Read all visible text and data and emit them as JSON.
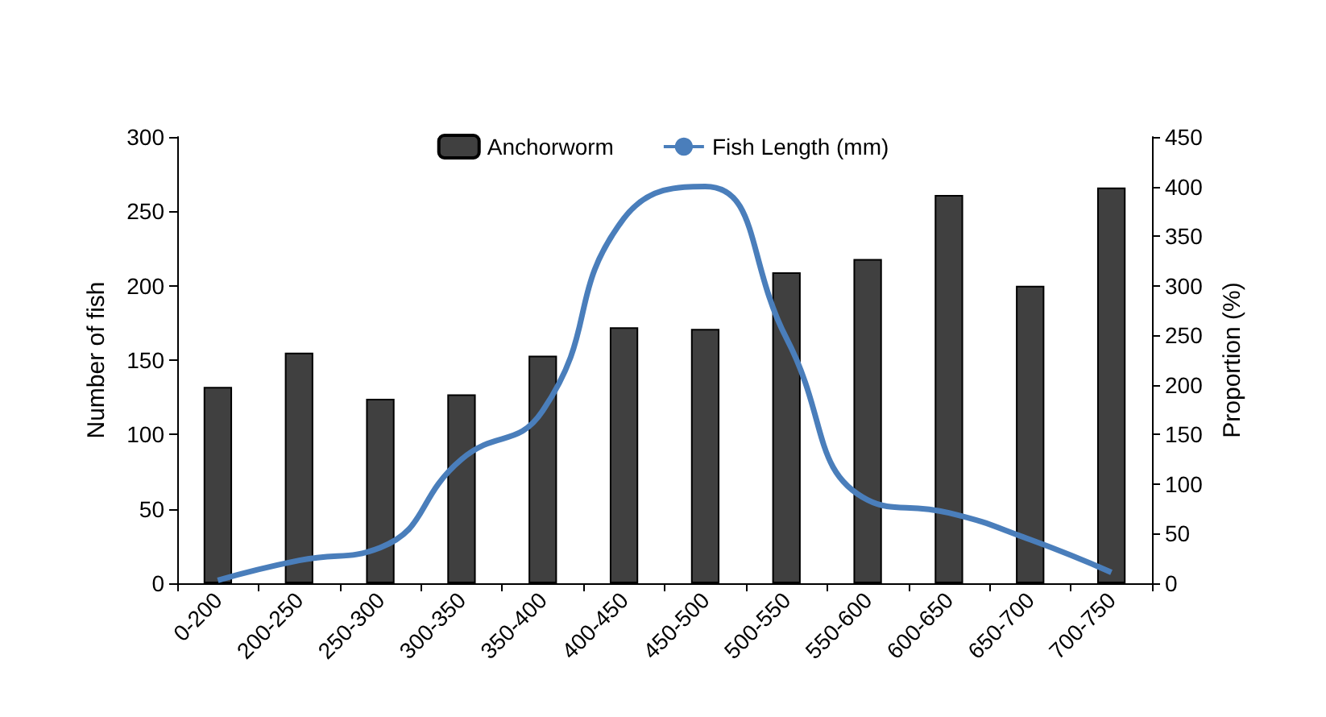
{
  "chart_data": {
    "type": "bar",
    "ylabel": "Number of fish",
    "y2label": "Proportion (%)",
    "categories": [
      "0-200",
      "200-250",
      "250-300",
      "300-350",
      "350-400",
      "400-450",
      "450-500",
      "500-550",
      "550-600",
      "600-650",
      "650-700",
      "700-750"
    ],
    "series": [
      {
        "name": "Anchorworm",
        "color": "#404040",
        "values": [
          132,
          155,
          124,
          127,
          153,
          172,
          171,
          209,
          218,
          261,
          200,
          266
        ]
      },
      {
        "name": "Fish Length (mm)",
        "type": "line",
        "axis": "y2",
        "color": "#4a7ebb",
        "values": [
          3,
          23,
          36,
          125,
          174,
          368,
          400,
          247,
          84,
          71,
          44,
          11
        ]
      }
    ],
    "ylim": [
      0,
      300
    ],
    "yticks": [
      0,
      50,
      100,
      150,
      200,
      250,
      300
    ],
    "y2lim": [
      0,
      450
    ],
    "y2ticks": [
      0,
      50,
      100,
      150,
      200,
      250,
      300,
      350,
      400,
      450
    ],
    "grid": false,
    "legend": "top",
    "marker": "none",
    "line_style": "solid"
  }
}
